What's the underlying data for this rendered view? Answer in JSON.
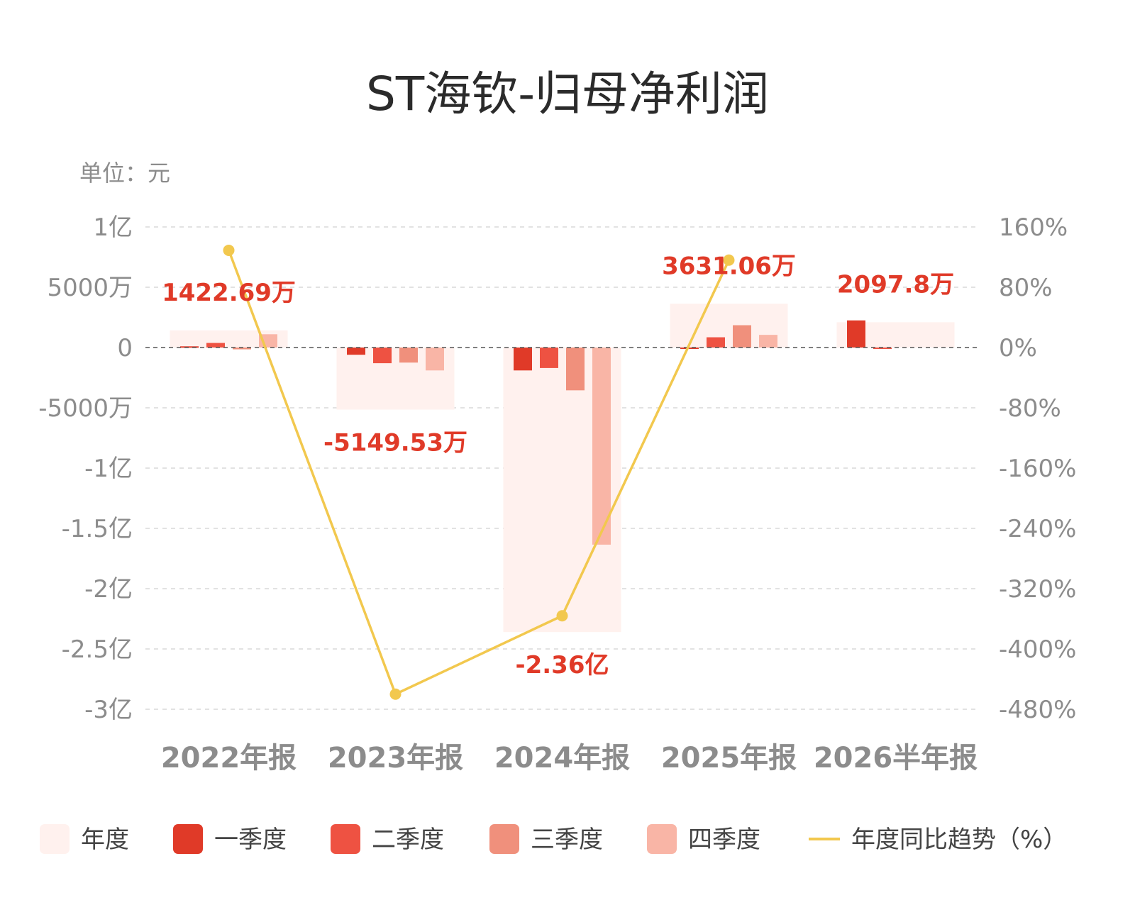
{
  "title": "ST海钦-归母净利润",
  "unit_label": "单位：元",
  "colors": {
    "annual": "#fff1ee",
    "q1": "#e03a28",
    "q2": "#ee5242",
    "q3": "#f0907c",
    "q4": "#f9b5a6",
    "trend": "#f2c84e",
    "label": "#e03a28",
    "grid": "#d9d9d9",
    "zero": "#555555"
  },
  "legend": [
    {
      "key": "annual",
      "label": "年度"
    },
    {
      "key": "q1",
      "label": "一季度"
    },
    {
      "key": "q2",
      "label": "二季度"
    },
    {
      "key": "q3",
      "label": "三季度"
    },
    {
      "key": "q4",
      "label": "四季度"
    },
    {
      "key": "trend",
      "label": "年度同比趋势（%）"
    }
  ],
  "chart_data": {
    "type": "bar",
    "categories": [
      "2022年报",
      "2023年报",
      "2024年报",
      "2025年报",
      "2026半年报"
    ],
    "y_left": {
      "ylim": [
        -300000000,
        100000000
      ],
      "ticks": [
        100000000,
        50000000,
        0,
        -50000000,
        -100000000,
        -150000000,
        -200000000,
        -250000000,
        -300000000
      ],
      "tick_labels": [
        "1亿",
        "5000万",
        "0",
        "-5000万",
        "-1亿",
        "-1.5亿",
        "-2亿",
        "-2.5亿",
        "-3亿"
      ]
    },
    "y_right": {
      "ylim": [
        -480,
        160
      ],
      "ticks": [
        160,
        80,
        0,
        -80,
        -160,
        -240,
        -320,
        -400,
        -480
      ],
      "tick_labels": [
        "160%",
        "80%",
        "0%",
        "-80%",
        "-160%",
        "-240%",
        "-320%",
        "-400%",
        "-480%"
      ]
    },
    "annual": [
      14226900,
      -51495300,
      -236000000,
      36310600,
      20978000
    ],
    "annual_labels": [
      "1422.69万",
      "-5149.53万",
      "-2.36亿",
      "3631.06万",
      "2097.8万"
    ],
    "quarters": {
      "q1": [
        1000000,
        -6000000,
        -19000000,
        -1000000,
        22500000
      ],
      "q2": [
        3800000,
        -13000000,
        -17000000,
        8500000,
        -1000000
      ],
      "q3": [
        -1500000,
        -12500000,
        -35500000,
        18500000,
        null
      ],
      "q4": [
        11000000,
        -19000000,
        -163500000,
        10500000,
        null
      ]
    },
    "trend_pct": [
      129,
      -460,
      -356,
      116,
      null
    ]
  }
}
